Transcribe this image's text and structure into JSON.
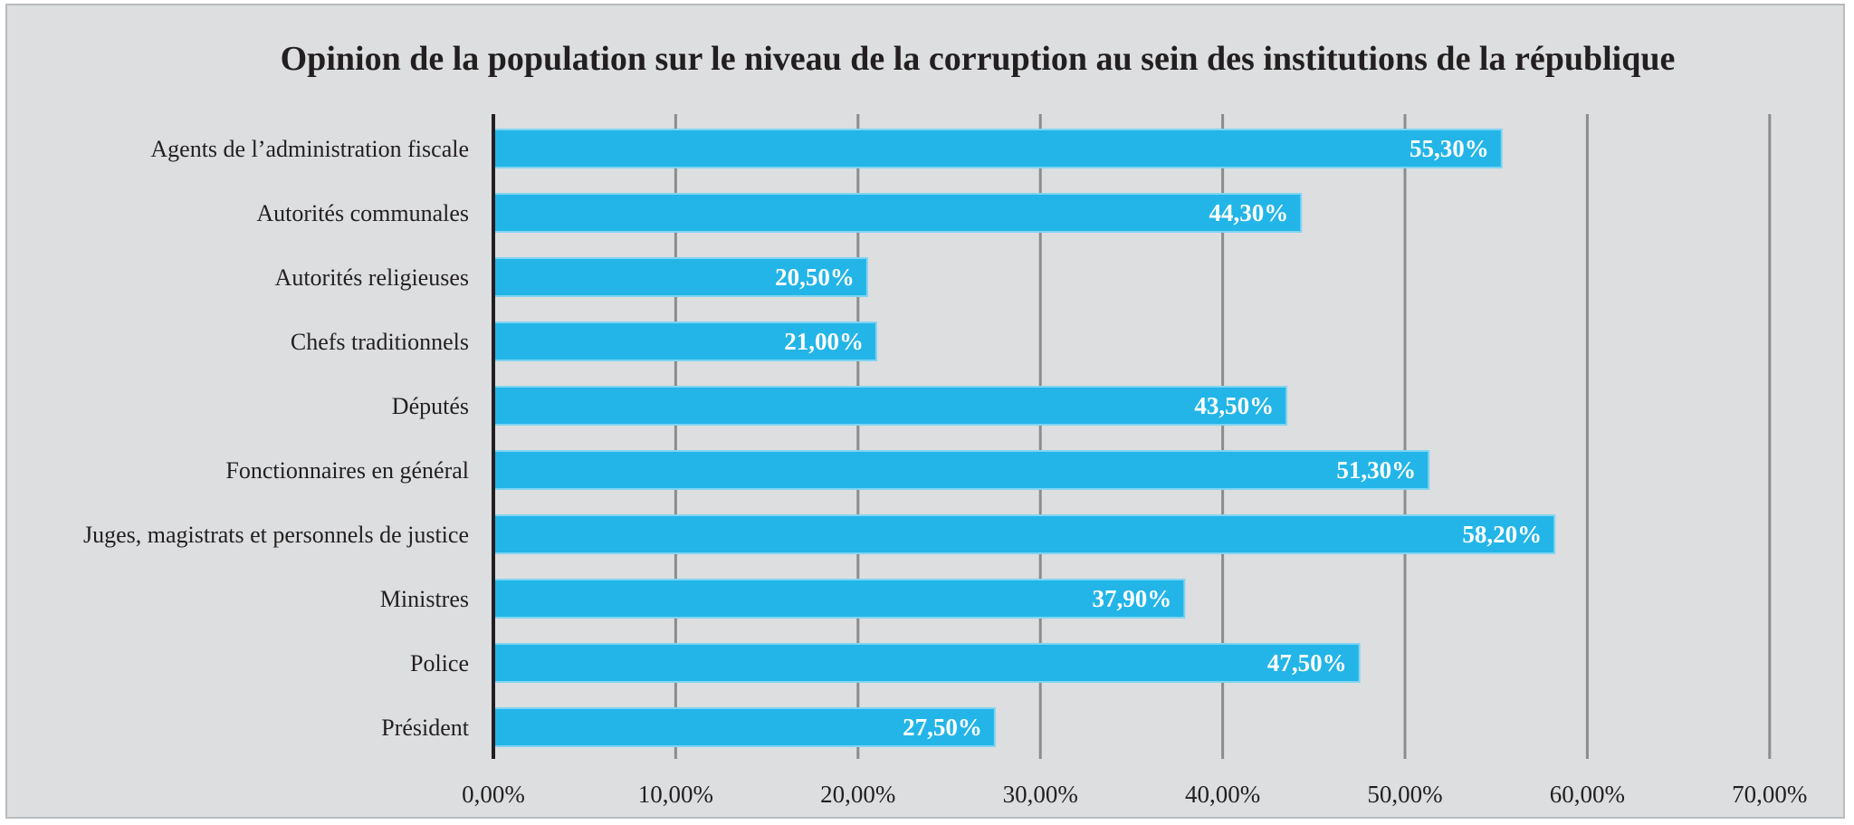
{
  "chart_data": {
    "type": "bar",
    "orientation": "horizontal",
    "title": "Opinion de la population sur le niveau de la corruption au sein des institutions de la république",
    "categories": [
      "Agents de l’administration fiscale",
      "Autorités communales",
      "Autorités religieuses",
      "Chefs traditionnels",
      "Députés",
      "Fonctionnaires en général",
      "Juges, magistrats et personnels de justice",
      "Ministres",
      "Police",
      "Président"
    ],
    "values": [
      55.3,
      44.3,
      20.5,
      21.0,
      43.5,
      51.3,
      58.2,
      37.9,
      47.5,
      27.5
    ],
    "data_labels": [
      "55,30%",
      "44,30%",
      "20,50%",
      "21,00%",
      "43,50%",
      "51,30%",
      "58,20%",
      "37,90%",
      "47,50%",
      "27,50%"
    ],
    "xlim": [
      0,
      70
    ],
    "x_ticks": [
      0,
      10,
      20,
      30,
      40,
      50,
      60,
      70
    ],
    "x_tick_labels": [
      "0,00%",
      "10,00%",
      "20,00%",
      "30,00%",
      "40,00%",
      "50,00%",
      "60,00%",
      "70,00%"
    ],
    "xlabel": "",
    "ylabel": "",
    "grid": "vertical",
    "legend": "none",
    "colors": {
      "bar": "#23b5e8",
      "bar_edge": "#7fd4f2",
      "background": "#dcdedf",
      "gridline": "#8a8c8e",
      "axis": "#231f20",
      "text": "#231f20",
      "data_label": "#ffffff"
    }
  }
}
